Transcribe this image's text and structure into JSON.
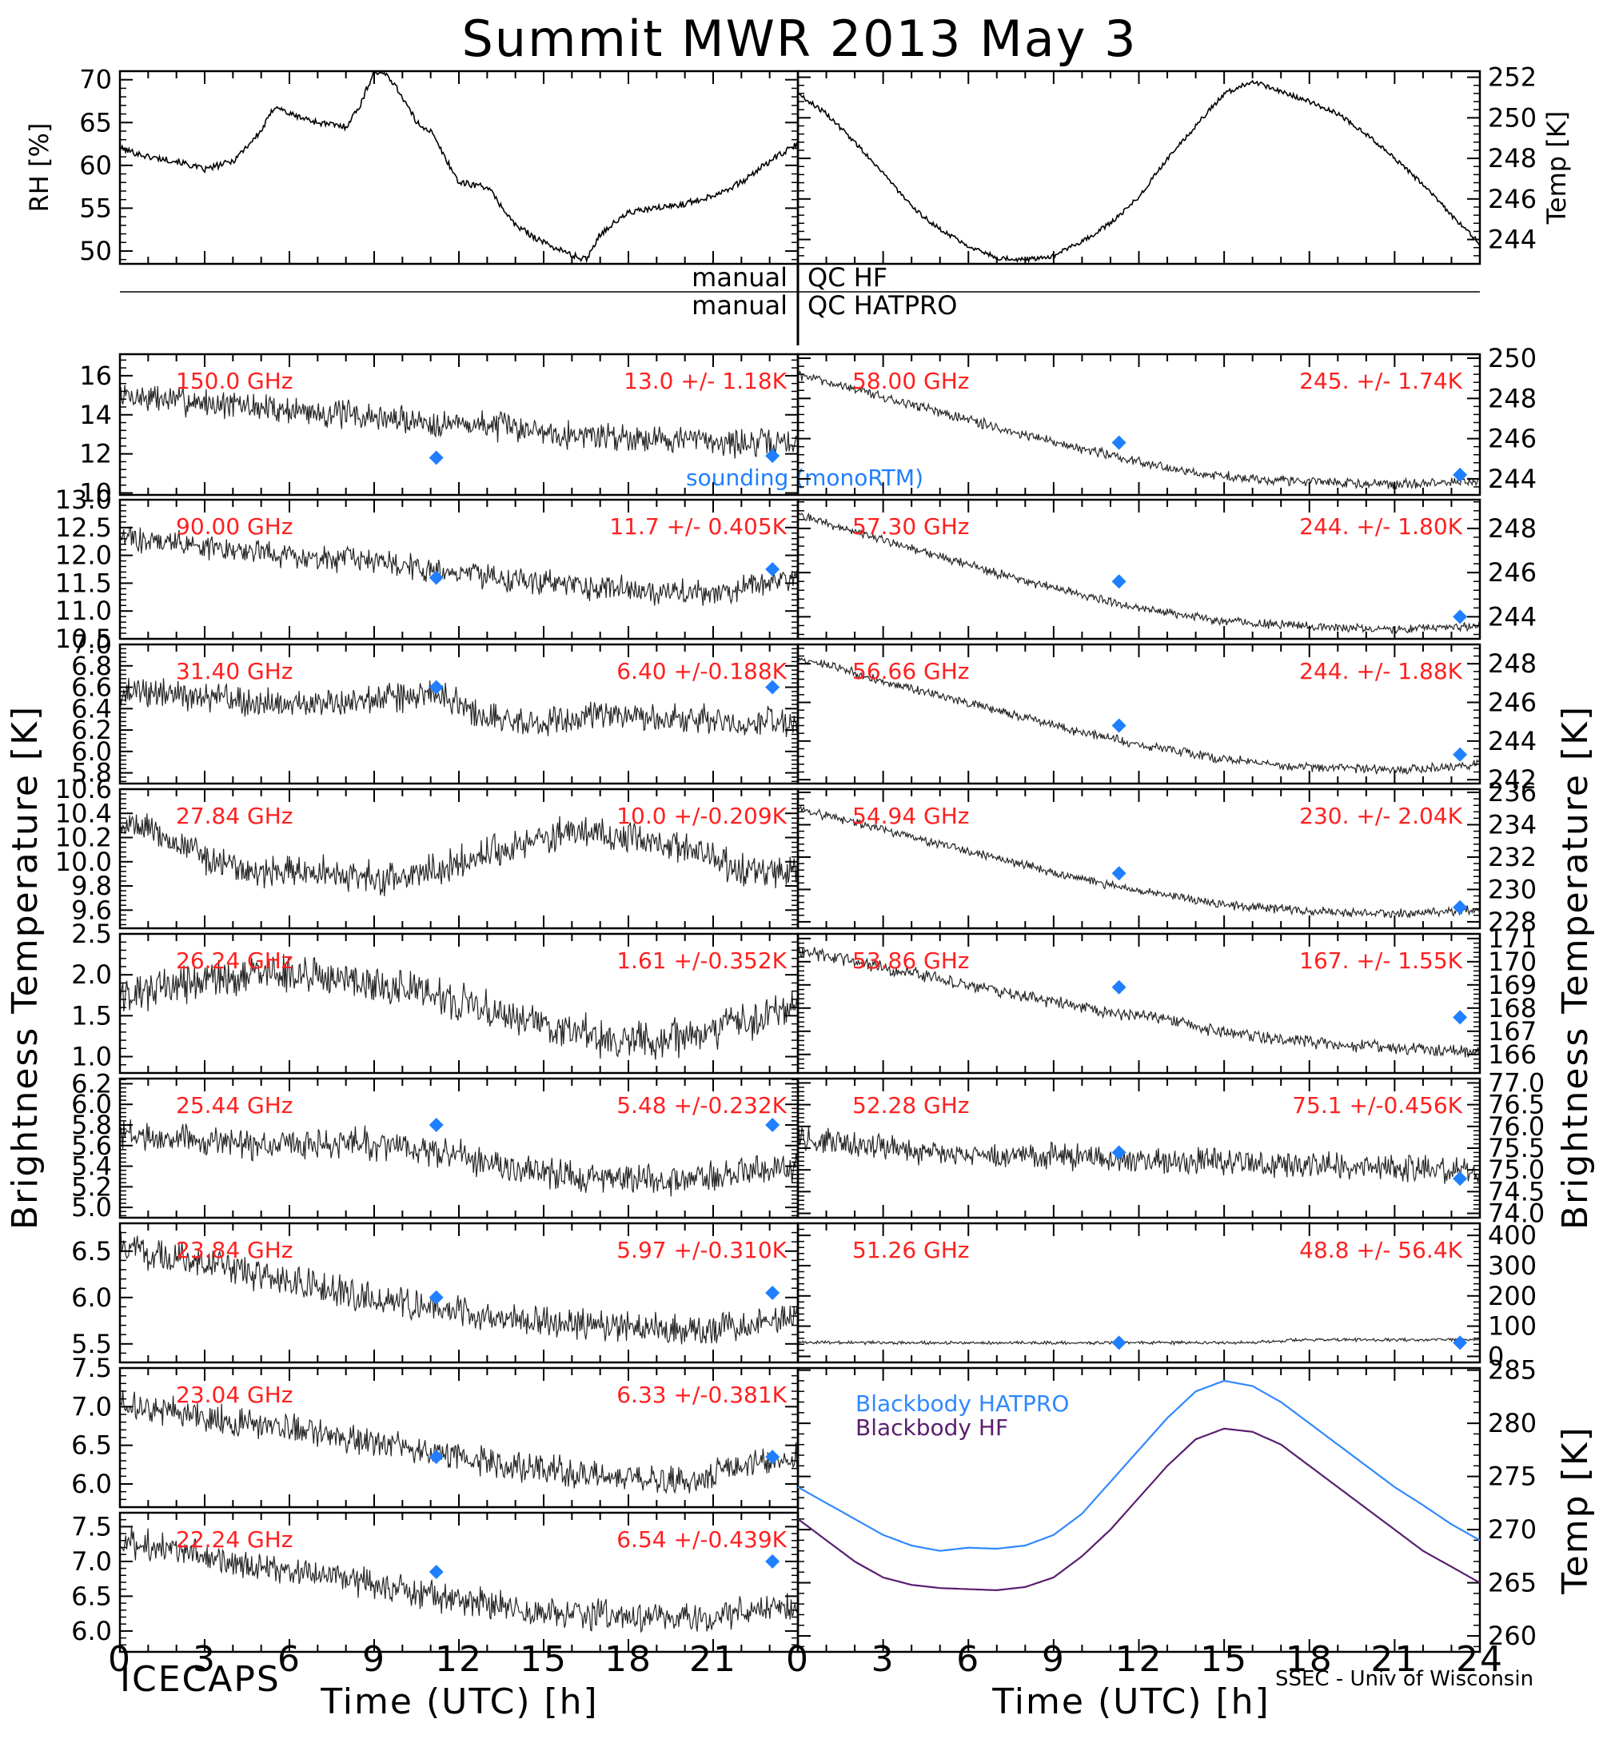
{
  "title": "Summit MWR 2013 May  3",
  "footer_left": "ICECAPS",
  "footer_right": "SSEC - Univ of Wisconsin",
  "qc_rows": [
    {
      "left": "manual",
      "right": "QC HF"
    },
    {
      "left": "manual",
      "right": "QC HATPRO"
    }
  ],
  "side_labels": {
    "left": "Brightness Temperature [K]",
    "right": "Brightness Temperature [K]"
  },
  "colors": {
    "annotation": "#ff2020",
    "sounding": "#1f7fff",
    "blackbody_hatpro": "#2f88ff",
    "blackbody_hf": "#5a1e6e",
    "trace": "#000000"
  },
  "chart_data": [
    {
      "type": "line",
      "name": "rh",
      "column": "left",
      "row": "met",
      "ylabel": "RH [%]",
      "ylim": [
        48.5,
        71
      ],
      "yticks": [
        50,
        55,
        60,
        65,
        70
      ],
      "x": [
        0,
        1,
        2,
        3,
        4,
        5,
        5.5,
        6,
        7,
        8,
        8.5,
        9,
        9.5,
        10,
        10.5,
        11,
        11.5,
        12,
        13,
        14,
        15,
        16,
        16.5,
        17,
        18,
        19,
        20,
        21,
        22,
        23,
        24
      ],
      "values": [
        62,
        61,
        60.5,
        59.5,
        60.5,
        64,
        67,
        66,
        65,
        64.5,
        67,
        71,
        70.5,
        68,
        65,
        64,
        61,
        58,
        57.5,
        53,
        51,
        49.5,
        49,
        52,
        54.5,
        55,
        55.5,
        56.5,
        58,
        60.5,
        62.5
      ]
    },
    {
      "type": "line",
      "name": "air-temp",
      "column": "right",
      "row": "met",
      "ylabel": "Temp [K]",
      "ylim": [
        242.8,
        252.3
      ],
      "yticks": [
        244,
        246,
        248,
        250,
        252
      ],
      "x": [
        0,
        1,
        2,
        3,
        4,
        5,
        6,
        7,
        8,
        9,
        10,
        11,
        12,
        13,
        14,
        15,
        16,
        17,
        18,
        19,
        20,
        21,
        22,
        23,
        24
      ],
      "values": [
        251.2,
        250.2,
        248.8,
        247.3,
        245.6,
        244.5,
        243.7,
        243.1,
        243.0,
        243.2,
        243.9,
        244.8,
        246.1,
        248.0,
        249.6,
        251.2,
        251.8,
        251.3,
        250.8,
        250.2,
        249.2,
        248.0,
        246.7,
        245.2,
        243.8
      ]
    },
    {
      "type": "line",
      "column": "left",
      "row": 0,
      "freq": "150.0 GHz",
      "stat": "13.0 +/-  1.18K",
      "ylim": [
        9.9,
        17.1
      ],
      "yticks": [
        10,
        12,
        14,
        16
      ],
      "tick_format": "%d",
      "trend": [
        15,
        14.8,
        14.6,
        14.4,
        14.2,
        14.0,
        13.8,
        13.6,
        13.5,
        13.3,
        13.0,
        12.9,
        12.8,
        12.7,
        12.5,
        12.6
      ],
      "noise": 1.1,
      "sounding": [
        11.8,
        11.9
      ],
      "note": "sounding (monoRTM)"
    },
    {
      "type": "line",
      "column": "left",
      "row": 1,
      "freq": "90.00 GHz",
      "stat": "11.7 +/- 0.405K",
      "ylim": [
        10.5,
        13.0
      ],
      "yticks": [
        10.5,
        11.0,
        11.5,
        12.0,
        12.5,
        13.0
      ],
      "tick_format": "%.1f",
      "trend": [
        12.3,
        12.25,
        12.15,
        12.05,
        11.95,
        11.9,
        11.85,
        11.75,
        11.65,
        11.55,
        11.45,
        11.4,
        11.35,
        11.35,
        11.45,
        11.65
      ],
      "noise": 0.35,
      "sounding": [
        11.6,
        11.75
      ]
    },
    {
      "type": "line",
      "column": "left",
      "row": 2,
      "freq": "31.40 GHz",
      "stat": "6.40 +/-0.188K",
      "ylim": [
        5.7,
        7.0
      ],
      "yticks": [
        5.8,
        6.0,
        6.2,
        6.4,
        6.6,
        6.8,
        7.0
      ],
      "tick_format": "%.1f",
      "trend": [
        6.55,
        6.55,
        6.5,
        6.45,
        6.45,
        6.45,
        6.5,
        6.55,
        6.35,
        6.25,
        6.3,
        6.35,
        6.3,
        6.3,
        6.25,
        6.3
      ],
      "noise": 0.2,
      "sounding": [
        6.6,
        6.6
      ]
    },
    {
      "type": "line",
      "column": "left",
      "row": 3,
      "freq": "27.84 GHz",
      "stat": "10.0 +/-0.209K",
      "ylim": [
        9.45,
        10.6
      ],
      "yticks": [
        9.6,
        9.8,
        10.0,
        10.2,
        10.4,
        10.6
      ],
      "tick_format": "%.1f",
      "trend": [
        10.35,
        10.2,
        10.0,
        9.9,
        9.95,
        9.9,
        9.85,
        9.95,
        10.05,
        10.15,
        10.25,
        10.2,
        10.15,
        10.05,
        9.9,
        9.95
      ],
      "noise": 0.2
    },
    {
      "type": "line",
      "column": "left",
      "row": 4,
      "freq": "26.24 GHz",
      "stat": "1.61 +/-0.352K",
      "ylim": [
        0.8,
        2.5
      ],
      "yticks": [
        1.0,
        1.5,
        2.0,
        2.5
      ],
      "tick_format": "%.1f",
      "trend": [
        1.75,
        1.85,
        1.95,
        2.0,
        2.0,
        1.95,
        1.85,
        1.75,
        1.6,
        1.45,
        1.3,
        1.2,
        1.2,
        1.3,
        1.45,
        1.65
      ],
      "noise": 0.35
    },
    {
      "type": "line",
      "column": "left",
      "row": 5,
      "freq": "25.44 GHz",
      "stat": "5.48 +/-0.232K",
      "ylim": [
        4.9,
        6.25
      ],
      "yticks": [
        5.0,
        5.2,
        5.4,
        5.6,
        5.8,
        6.0,
        6.2
      ],
      "tick_format": "%.1f",
      "trend": [
        5.7,
        5.7,
        5.65,
        5.6,
        5.6,
        5.65,
        5.6,
        5.55,
        5.45,
        5.35,
        5.3,
        5.3,
        5.25,
        5.3,
        5.35,
        5.4
      ],
      "noise": 0.22,
      "sounding": [
        5.8,
        5.8
      ]
    },
    {
      "type": "line",
      "column": "left",
      "row": 6,
      "freq": "23.84 GHz",
      "stat": "5.97 +/-0.310K",
      "ylim": [
        5.3,
        6.8
      ],
      "yticks": [
        5.5,
        6.0,
        6.5
      ],
      "tick_format": "%.1f",
      "trend": [
        6.55,
        6.45,
        6.35,
        6.25,
        6.15,
        6.05,
        5.95,
        5.9,
        5.8,
        5.75,
        5.7,
        5.7,
        5.65,
        5.65,
        5.7,
        5.8
      ],
      "noise": 0.25,
      "sounding": [
        6.0,
        6.05
      ]
    },
    {
      "type": "line",
      "column": "left",
      "row": 7,
      "freq": "23.04 GHz",
      "stat": "6.33 +/-0.381K",
      "ylim": [
        5.7,
        7.5
      ],
      "yticks": [
        6.0,
        6.5,
        7.0,
        7.5
      ],
      "tick_format": "%.1f",
      "trend": [
        7.05,
        6.95,
        6.85,
        6.75,
        6.7,
        6.6,
        6.5,
        6.4,
        6.3,
        6.2,
        6.15,
        6.1,
        6.05,
        6.1,
        6.25,
        6.35
      ],
      "noise": 0.28,
      "sounding": [
        6.35,
        6.35
      ]
    },
    {
      "type": "line",
      "column": "left",
      "row": 8,
      "freq": "22.24 GHz",
      "stat": "6.54 +/-0.439K",
      "ylim": [
        5.7,
        7.7
      ],
      "yticks": [
        6.0,
        6.5,
        7.0,
        7.5
      ],
      "tick_format": "%.1f",
      "trend": [
        7.3,
        7.2,
        7.05,
        6.95,
        6.85,
        6.75,
        6.6,
        6.5,
        6.4,
        6.3,
        6.25,
        6.2,
        6.2,
        6.2,
        6.3,
        6.4
      ],
      "noise": 0.32,
      "sounding": [
        6.85,
        7.0
      ]
    },
    {
      "type": "line",
      "column": "right",
      "row": 0,
      "freq": "58.00 GHz",
      "stat": "245. +/- 1.74K",
      "ylim": [
        243.2,
        250.2
      ],
      "yticks": [
        244,
        246,
        248,
        250
      ],
      "tick_format": "%d",
      "trend": [
        249.2,
        248.6,
        248.0,
        247.4,
        246.8,
        246.2,
        245.6,
        245.1,
        244.6,
        244.2,
        244.0,
        243.9,
        243.8,
        243.7,
        243.8,
        243.9
      ],
      "noise": 0.35,
      "sounding": [
        245.8,
        244.2
      ]
    },
    {
      "type": "line",
      "column": "right",
      "row": 1,
      "freq": "57.30 GHz",
      "stat": "244. +/- 1.80K",
      "ylim": [
        243.0,
        249.3
      ],
      "yticks": [
        244,
        246,
        248
      ],
      "tick_format": "%d",
      "trend": [
        248.6,
        248.0,
        247.4,
        246.8,
        246.2,
        245.6,
        245.1,
        244.6,
        244.2,
        243.9,
        243.7,
        243.6,
        243.5,
        243.4,
        243.5,
        243.6
      ],
      "noise": 0.3,
      "sounding": [
        245.6,
        244.0
      ]
    },
    {
      "type": "line",
      "column": "right",
      "row": 2,
      "freq": "56.66 GHz",
      "stat": "244. +/- 1.88K",
      "ylim": [
        241.8,
        249.0
      ],
      "yticks": [
        242,
        244,
        246,
        248
      ],
      "tick_format": "%d",
      "trend": [
        248.3,
        247.7,
        247.0,
        246.4,
        245.8,
        245.2,
        244.6,
        244.1,
        243.6,
        243.2,
        242.9,
        242.7,
        242.6,
        242.5,
        242.6,
        242.8
      ],
      "noise": 0.35,
      "sounding": [
        244.8,
        243.3
      ]
    },
    {
      "type": "line",
      "column": "right",
      "row": 3,
      "freq": "54.94 GHz",
      "stat": "230. +/- 2.04K",
      "ylim": [
        227.6,
        236.2
      ],
      "yticks": [
        228,
        230,
        232,
        234,
        236
      ],
      "tick_format": "%d",
      "trend": [
        235.0,
        234.3,
        233.6,
        232.9,
        232.2,
        231.5,
        230.8,
        230.2,
        229.7,
        229.2,
        228.9,
        228.7,
        228.6,
        228.5,
        228.6,
        228.8
      ],
      "noise": 0.4,
      "sounding": [
        231.0,
        228.9
      ]
    },
    {
      "type": "line",
      "column": "right",
      "row": 4,
      "freq": "53.86 GHz",
      "stat": "167. +/- 1.55K",
      "ylim": [
        165.2,
        171.2
      ],
      "yticks": [
        166,
        167,
        168,
        169,
        170,
        171
      ],
      "tick_format": "%d",
      "trend": [
        170.5,
        170.1,
        169.7,
        169.3,
        168.9,
        168.5,
        168.1,
        167.8,
        167.5,
        167.1,
        166.8,
        166.6,
        166.4,
        166.3,
        166.2,
        166.1
      ],
      "noise": 0.4,
      "sounding": [
        168.9,
        167.6
      ]
    },
    {
      "type": "line",
      "column": "right",
      "row": 5,
      "freq": "52.28 GHz",
      "stat": "75.1 +/-0.456K",
      "ylim": [
        73.9,
        77.1
      ],
      "yticks": [
        74.0,
        74.5,
        75.0,
        75.5,
        76.0,
        76.5,
        77.0
      ],
      "tick_format": "%.1f",
      "trend": [
        75.7,
        75.6,
        75.5,
        75.4,
        75.35,
        75.3,
        75.3,
        75.25,
        75.2,
        75.2,
        75.15,
        75.1,
        75.1,
        75.05,
        75.0,
        74.95
      ],
      "noise": 0.45,
      "sounding": [
        75.4,
        74.8
      ]
    },
    {
      "type": "line",
      "column": "right",
      "row": 6,
      "freq": "51.26 GHz",
      "stat": "48.8 +/- 56.4K",
      "ylim": [
        -20,
        440
      ],
      "yticks": [
        0,
        100,
        200,
        300,
        400
      ],
      "tick_format": "%d",
      "trend": [
        45,
        45,
        45,
        45,
        45,
        45,
        45,
        45,
        45,
        45,
        45,
        55,
        55,
        55,
        55,
        55
      ],
      "noise": 8,
      "sounding": [
        45,
        45
      ]
    },
    {
      "type": "line",
      "column": "right",
      "row": "bb",
      "ylabel": "Temp [K]",
      "ylim": [
        258.5,
        285.2
      ],
      "yticks": [
        260,
        265,
        270,
        275,
        280,
        285
      ],
      "series": [
        {
          "name": "Blackbody HATPRO",
          "x": [
            0,
            1,
            2,
            3,
            4,
            5,
            6,
            7,
            8,
            9,
            10,
            11,
            12,
            13,
            14,
            15,
            16,
            17,
            18,
            19,
            20,
            21,
            22,
            23,
            24
          ],
          "values": [
            274,
            272.5,
            271,
            269.5,
            268.5,
            268,
            268.3,
            268.2,
            268.5,
            269.5,
            271.5,
            274.5,
            277.5,
            280.5,
            283,
            284,
            283.5,
            282,
            280,
            278,
            276,
            274,
            272.3,
            270.5,
            269
          ]
        },
        {
          "name": "Blackbody HF",
          "x": [
            0,
            1,
            2,
            3,
            4,
            5,
            6,
            7,
            8,
            9,
            10,
            11,
            12,
            13,
            14,
            15,
            16,
            17,
            18,
            19,
            20,
            21,
            22,
            23,
            24
          ],
          "values": [
            271,
            269,
            267,
            265.5,
            264.8,
            264.5,
            264.4,
            264.3,
            264.6,
            265.5,
            267.5,
            270,
            273,
            276,
            278.5,
            279.5,
            279.2,
            278,
            276,
            274,
            272,
            270,
            268,
            266.5,
            265
          ]
        }
      ]
    }
  ],
  "x_axis": {
    "ticks": [
      0,
      3,
      6,
      9,
      12,
      15,
      18,
      21,
      24
    ],
    "left_tick_labels": [
      "0",
      "3",
      "6",
      "9",
      "12",
      "15",
      "18",
      "21"
    ],
    "right_tick_labels": [
      "0",
      "3",
      "6",
      "9",
      "12",
      "15",
      "18",
      "21",
      "24"
    ],
    "label": "Time (UTC) [h]",
    "range": [
      0,
      24
    ]
  }
}
